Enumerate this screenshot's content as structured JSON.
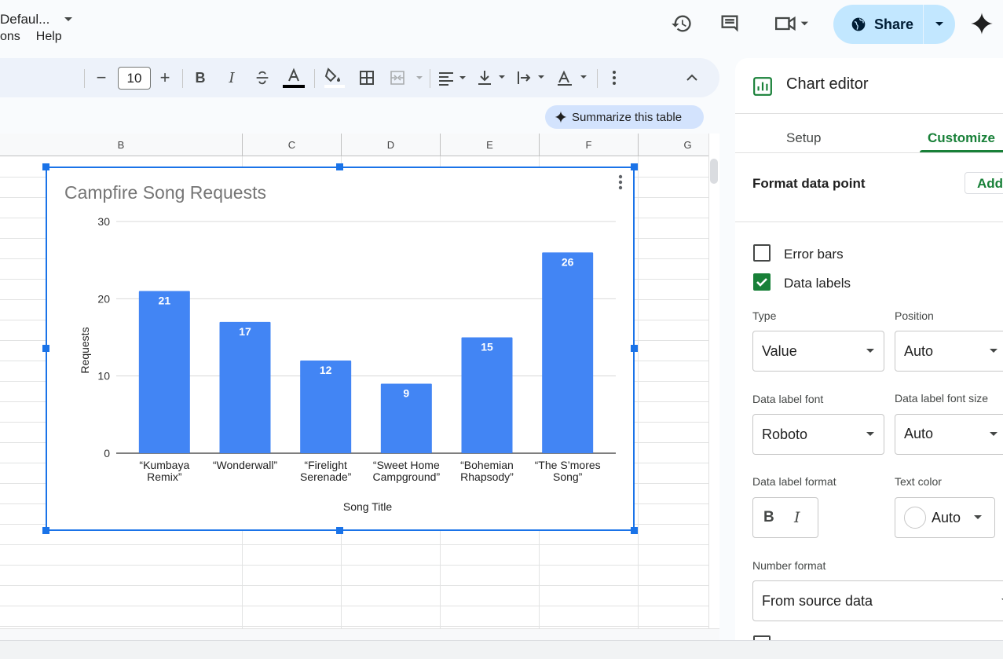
{
  "menu": [
    "ons",
    "Help"
  ],
  "header": {
    "share_label": "Share"
  },
  "toolbar": {
    "font_name": "Defaul...",
    "font_size": "10",
    "minus": "−",
    "plus": "+",
    "bold": "B",
    "italic": "I"
  },
  "summarize_label": "Summarize this table",
  "columns": [
    "B",
    "C",
    "D",
    "E",
    "F",
    "G"
  ],
  "chart_data": {
    "type": "bar",
    "title": "Campfire Song Requests",
    "xlabel": "Song Title",
    "ylabel": "Requests",
    "categories": [
      [
        "“Kumbaya",
        "Remix”"
      ],
      [
        "“Wonderwall”"
      ],
      [
        "“Firelight",
        "Serenade”"
      ],
      [
        "“Sweet Home",
        "Campground”"
      ],
      [
        "“Bohemian",
        "Rhapsody”"
      ],
      [
        "“The S’mores",
        "Song”"
      ]
    ],
    "values": [
      21,
      17,
      12,
      9,
      15,
      26
    ],
    "yticks": [
      "0",
      "10",
      "20",
      "30"
    ],
    "ylim": [
      0,
      30
    ],
    "data_labels": true,
    "grid": true,
    "bar_color": "#4285f4"
  },
  "panel": {
    "title": "Chart editor",
    "tabs": [
      "Setup",
      "Customize"
    ],
    "section": "Format data point",
    "add_label": "Add",
    "error_bars": "Error bars",
    "data_labels": "Data labels",
    "type_label": "Type",
    "type_value": "Value",
    "position_label": "Position",
    "position_value": "Auto",
    "font_label": "Data label font",
    "font_value": "Roboto",
    "font_size_label": "Data label font size",
    "font_size_value": "Auto",
    "format_label": "Data label format",
    "bold": "B",
    "italic": "I",
    "text_color_label": "Text color",
    "text_color_value": "Auto",
    "number_format_label": "Number format",
    "number_format_value": "From source data",
    "accent": "#188038"
  }
}
